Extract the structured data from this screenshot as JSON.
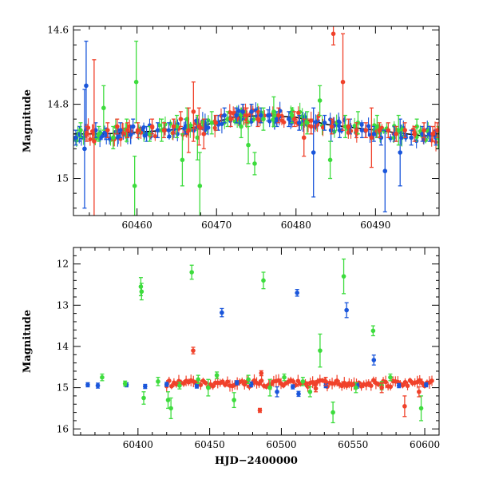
{
  "colors": {
    "blue": "#1a56db",
    "green": "#3ddc3d",
    "red": "#f0412a",
    "fit": "#000000"
  },
  "chart_data": [
    {
      "id": "top-panel",
      "type": "scatter",
      "title": "",
      "xlabel": "",
      "ylabel": "Magnitude",
      "xlim": [
        60452,
        60498
      ],
      "ylim": [
        15.1,
        14.59
      ],
      "y_inverted": true,
      "grid": false,
      "x_ticks": [
        60460,
        60470,
        60480,
        60490
      ],
      "x_tick_labels": [
        "60460",
        "60470",
        "60480",
        "60490"
      ],
      "y_ticks": [
        14.6,
        14.8,
        15.0
      ],
      "y_tick_labels": [
        "14.6",
        "14.8",
        "15"
      ],
      "fit_curve": {
        "x": [
          60452,
          60456,
          60460,
          60464,
          60468,
          60472,
          60476,
          60480,
          60484,
          60488,
          60492,
          60496,
          60498
        ],
        "y": [
          14.88,
          14.88,
          14.875,
          14.87,
          14.86,
          14.835,
          14.83,
          14.835,
          14.855,
          14.865,
          14.875,
          14.885,
          14.885
        ]
      },
      "series": [
        {
          "color_key": "blue",
          "points": [
            [
              60452.3,
              14.89,
              0.02
            ],
            [
              60452.8,
              14.88,
              0.02
            ],
            [
              60453.4,
              14.92,
              0.16
            ],
            [
              60453.6,
              14.75,
              0.12
            ],
            [
              60454.8,
              14.87,
              0.02
            ],
            [
              60456.1,
              14.88,
              0.015
            ],
            [
              60457.9,
              14.87,
              0.02
            ],
            [
              60459.5,
              14.86,
              0.02
            ],
            [
              60461.2,
              14.88,
              0.02
            ],
            [
              60462.6,
              14.87,
              0.02
            ],
            [
              60464.0,
              14.87,
              0.02
            ],
            [
              60466.1,
              14.86,
              0.02
            ],
            [
              60468.6,
              14.86,
              0.02
            ],
            [
              60470.2,
              14.85,
              0.02
            ],
            [
              60471.0,
              14.83,
              0.02
            ],
            [
              60472.5,
              14.83,
              0.02
            ],
            [
              60473.3,
              14.82,
              0.02
            ],
            [
              60474.4,
              14.82,
              0.02
            ],
            [
              60475.6,
              14.83,
              0.02
            ],
            [
              60476.5,
              14.83,
              0.015
            ],
            [
              60477.6,
              14.84,
              0.02
            ],
            [
              60479.1,
              14.84,
              0.02
            ],
            [
              60480.4,
              14.85,
              0.02
            ],
            [
              60482.2,
              14.93,
              0.12
            ],
            [
              60483.6,
              14.85,
              0.02
            ],
            [
              60484.4,
              14.87,
              0.03
            ],
            [
              60485.5,
              14.87,
              0.02
            ],
            [
              60486.8,
              14.86,
              0.02
            ],
            [
              60488.3,
              14.87,
              0.02
            ],
            [
              60489.8,
              14.88,
              0.02
            ],
            [
              60490.7,
              14.89,
              0.02
            ],
            [
              60491.2,
              14.98,
              0.11
            ],
            [
              60492.4,
              14.88,
              0.02
            ],
            [
              60493.1,
              14.93,
              0.09
            ],
            [
              60494.5,
              14.89,
              0.02
            ],
            [
              60495.9,
              14.88,
              0.02
            ],
            [
              60496.8,
              14.88,
              0.02
            ],
            [
              60497.6,
              14.89,
              0.02
            ]
          ]
        },
        {
          "color_key": "green",
          "points": [
            [
              60452.9,
              14.87,
              0.02
            ],
            [
              60455.2,
              14.88,
              0.02
            ],
            [
              60455.8,
              14.81,
              0.06
            ],
            [
              60457.0,
              14.89,
              0.03
            ],
            [
              60458.7,
              14.87,
              0.03
            ],
            [
              60459.7,
              15.02,
              0.08
            ],
            [
              60459.9,
              14.74,
              0.11
            ],
            [
              60461.6,
              14.88,
              0.02
            ],
            [
              60463.1,
              14.87,
              0.03
            ],
            [
              60465.0,
              14.86,
              0.03
            ],
            [
              60465.7,
              14.95,
              0.07
            ],
            [
              60466.3,
              14.84,
              0.03
            ],
            [
              60467.6,
              14.89,
              0.06
            ],
            [
              60467.9,
              15.02,
              0.09
            ],
            [
              60469.4,
              14.85,
              0.03
            ],
            [
              60471.4,
              14.84,
              0.02
            ],
            [
              60473.1,
              14.86,
              0.03
            ],
            [
              60474.0,
              14.91,
              0.05
            ],
            [
              60474.8,
              14.96,
              0.03
            ],
            [
              60475.9,
              14.84,
              0.03
            ],
            [
              60477.2,
              14.82,
              0.04
            ],
            [
              60479.5,
              14.83,
              0.02
            ],
            [
              60481.4,
              14.85,
              0.03
            ],
            [
              60483.0,
              14.79,
              0.04
            ],
            [
              60484.3,
              14.95,
              0.05
            ],
            [
              60486.2,
              14.86,
              0.03
            ],
            [
              60487.8,
              14.85,
              0.03
            ],
            [
              60490.2,
              14.86,
              0.03
            ],
            [
              60492.9,
              14.87,
              0.04
            ],
            [
              60495.2,
              14.86,
              0.02
            ],
            [
              60497.9,
              14.89,
              0.03
            ]
          ]
        },
        {
          "color_key": "red",
          "points": [
            [
              60453.7,
              14.88,
              0.02
            ],
            [
              60454.6,
              14.9,
              0.22
            ],
            [
              60456.3,
              14.87,
              0.02
            ],
            [
              60457.5,
              14.86,
              0.02
            ],
            [
              60458.8,
              14.87,
              0.02
            ],
            [
              60460.1,
              14.87,
              0.02
            ],
            [
              60461.9,
              14.86,
              0.02
            ],
            [
              60463.4,
              14.87,
              0.02
            ],
            [
              60464.6,
              14.86,
              0.02
            ],
            [
              60465.5,
              14.84,
              0.02
            ],
            [
              60466.5,
              14.87,
              0.06
            ],
            [
              60467.1,
              14.82,
              0.08
            ],
            [
              60467.8,
              14.86,
              0.05
            ],
            [
              60468.4,
              14.88,
              0.04
            ],
            [
              60469.9,
              14.85,
              0.02
            ],
            [
              60471.8,
              14.84,
              0.02
            ],
            [
              60473.8,
              14.83,
              0.02
            ],
            [
              60475.2,
              14.84,
              0.02
            ],
            [
              60477.8,
              14.83,
              0.02
            ],
            [
              60479.8,
              14.84,
              0.02
            ],
            [
              60481.0,
              14.89,
              0.05
            ],
            [
              60481.9,
              14.86,
              0.02
            ],
            [
              60484.5,
              14.86,
              0.02
            ],
            [
              60484.7,
              14.61,
              0.03
            ],
            [
              60485.9,
              14.74,
              0.13
            ],
            [
              60486.6,
              14.86,
              0.02
            ],
            [
              60487.6,
              14.87,
              0.02
            ],
            [
              60488.8,
              14.87,
              0.02
            ],
            [
              60489.5,
              14.89,
              0.08
            ],
            [
              60490.5,
              14.87,
              0.02
            ],
            [
              60491.6,
              14.87,
              0.02
            ],
            [
              60492.6,
              14.88,
              0.02
            ],
            [
              60493.7,
              14.87,
              0.02
            ],
            [
              60494.9,
              14.88,
              0.02
            ],
            [
              60496.1,
              14.87,
              0.02
            ],
            [
              60497.2,
              14.88,
              0.02
            ],
            [
              60497.8,
              14.87,
              0.02
            ]
          ]
        }
      ]
    },
    {
      "id": "bottom-panel",
      "type": "scatter",
      "title": "",
      "xlabel": "HJD−2400000",
      "ylabel": "Magnitude",
      "xlim": [
        60355,
        60610
      ],
      "ylim": [
        16.15,
        11.6
      ],
      "y_inverted": true,
      "grid": false,
      "x_ticks": [
        60400,
        60450,
        60500,
        60550,
        60600
      ],
      "x_tick_labels": [
        "60400",
        "60450",
        "60500",
        "60550",
        "60600"
      ],
      "y_ticks": [
        12,
        13,
        14,
        15,
        16
      ],
      "y_tick_labels": [
        "12",
        "13",
        "14",
        "15",
        "16"
      ],
      "fit_curve": {
        "x": [],
        "y": []
      },
      "series": [
        {
          "color_key": "blue",
          "points": [
            [
              60365,
              14.93,
              0.05
            ],
            [
              60372,
              14.95,
              0.06
            ],
            [
              60392,
              14.93,
              0.05
            ],
            [
              60405,
              14.97,
              0.05
            ],
            [
              60420,
              14.92,
              0.05
            ],
            [
              60441,
              14.96,
              0.05
            ],
            [
              60458.5,
              13.18,
              0.1
            ],
            [
              60469,
              14.88,
              0.05
            ],
            [
              60479,
              14.92,
              0.06
            ],
            [
              60497,
              15.1,
              0.12
            ],
            [
              60508,
              14.98,
              0.05
            ],
            [
              60511,
              12.7,
              0.08
            ],
            [
              60512,
              15.15,
              0.06
            ],
            [
              60531,
              14.95,
              0.05
            ],
            [
              60545.5,
              13.12,
              0.18
            ],
            [
              60553,
              14.95,
              0.06
            ],
            [
              60564.5,
              14.33,
              0.12
            ],
            [
              60582,
              14.95,
              0.05
            ],
            [
              60601,
              14.93,
              0.05
            ]
          ]
        },
        {
          "color_key": "green",
          "points": [
            [
              60375,
              14.75,
              0.08
            ],
            [
              60391,
              14.9,
              0.06
            ],
            [
              60402,
              12.55,
              0.22
            ],
            [
              60402.5,
              12.67,
              0.2
            ],
            [
              60404,
              15.25,
              0.15
            ],
            [
              60414,
              14.85,
              0.1
            ],
            [
              60421,
              15.3,
              0.2
            ],
            [
              60423,
              15.5,
              0.25
            ],
            [
              60429,
              14.95,
              0.08
            ],
            [
              60437.5,
              12.2,
              0.17
            ],
            [
              60442,
              14.8,
              0.1
            ],
            [
              60449,
              15.0,
              0.2
            ],
            [
              60455,
              14.7,
              0.08
            ],
            [
              60467,
              15.3,
              0.18
            ],
            [
              60477,
              14.8,
              0.1
            ],
            [
              60487.5,
              12.4,
              0.2
            ],
            [
              60492,
              15.0,
              0.2
            ],
            [
              60502,
              14.75,
              0.08
            ],
            [
              60515,
              14.85,
              0.1
            ],
            [
              60520,
              15.1,
              0.12
            ],
            [
              60527,
              14.1,
              0.4
            ],
            [
              60536,
              15.6,
              0.25
            ],
            [
              60543.5,
              12.3,
              0.42
            ],
            [
              60552,
              15.0,
              0.12
            ],
            [
              60564,
              13.62,
              0.12
            ],
            [
              60570,
              14.95,
              0.1
            ],
            [
              60576,
              14.75,
              0.08
            ],
            [
              60597.5,
              15.5,
              0.3
            ]
          ]
        },
        {
          "color_key": "red",
          "points": [
            [
              60438.5,
              14.1,
              0.08
            ],
            [
              60485,
              15.55,
              0.05
            ],
            [
              60486,
              14.65,
              0.06
            ],
            [
              60524,
              15.02,
              0.08
            ],
            [
              60531,
              14.85,
              0.1
            ],
            [
              60570,
              15.0,
              0.12
            ],
            [
              60586,
              15.45,
              0.25
            ],
            [
              60596,
              15.1,
              0.12
            ]
          ]
        }
      ],
      "band": {
        "x_start": 60420,
        "x_end": 60605,
        "y_center": 14.9,
        "y_halfwidth": 0.08
      }
    }
  ]
}
